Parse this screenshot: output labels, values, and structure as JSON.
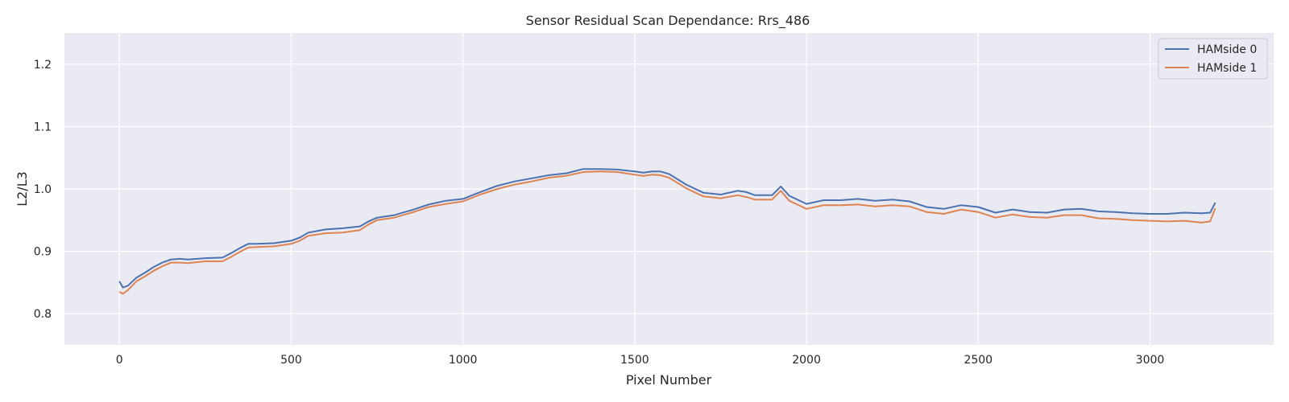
{
  "chart_data": {
    "type": "line",
    "title": "Sensor Residual Scan Dependance: Rrs_486",
    "xlabel": "Pixel Number",
    "ylabel": "L2/L3",
    "xlim": [
      -160,
      3360
    ],
    "ylim": [
      0.75,
      1.25
    ],
    "xticks": [
      0,
      500,
      1000,
      1500,
      2000,
      2500,
      3000
    ],
    "yticks": [
      0.8,
      0.9,
      1.0,
      1.1,
      1.2
    ],
    "xtick_labels": [
      "0",
      "500",
      "1000",
      "1500",
      "2000",
      "2500",
      "3000"
    ],
    "ytick_labels": [
      "0.8",
      "0.9",
      "1.0",
      "1.1",
      "1.2"
    ],
    "grid": true,
    "legend_position": "top-right",
    "series": [
      {
        "name": "HAMside 0",
        "color": "#4c72b0",
        "x": [
          0,
          10,
          25,
          50,
          75,
          100,
          125,
          150,
          175,
          200,
          250,
          300,
          325,
          350,
          375,
          400,
          450,
          500,
          525,
          550,
          600,
          650,
          700,
          725,
          750,
          800,
          850,
          900,
          950,
          1000,
          1050,
          1100,
          1150,
          1200,
          1250,
          1300,
          1350,
          1400,
          1450,
          1500,
          1525,
          1550,
          1575,
          1600,
          1650,
          1700,
          1750,
          1800,
          1825,
          1850,
          1900,
          1925,
          1950,
          2000,
          2050,
          2100,
          2150,
          2200,
          2250,
          2300,
          2350,
          2400,
          2450,
          2500,
          2550,
          2600,
          2650,
          2700,
          2750,
          2800,
          2850,
          2900,
          2950,
          3000,
          3050,
          3100,
          3150,
          3175,
          3190
        ],
        "y": [
          0.852,
          0.842,
          0.845,
          0.858,
          0.866,
          0.875,
          0.882,
          0.887,
          0.888,
          0.887,
          0.889,
          0.89,
          0.897,
          0.905,
          0.912,
          0.912,
          0.913,
          0.917,
          0.922,
          0.93,
          0.935,
          0.937,
          0.94,
          0.948,
          0.954,
          0.958,
          0.966,
          0.975,
          0.981,
          0.984,
          0.995,
          1.005,
          1.012,
          1.017,
          1.022,
          1.025,
          1.032,
          1.032,
          1.031,
          1.028,
          1.026,
          1.028,
          1.028,
          1.024,
          1.007,
          0.994,
          0.991,
          0.997,
          0.995,
          0.99,
          0.99,
          1.004,
          0.989,
          0.976,
          0.982,
          0.982,
          0.984,
          0.981,
          0.983,
          0.98,
          0.971,
          0.968,
          0.974,
          0.971,
          0.962,
          0.967,
          0.963,
          0.962,
          0.967,
          0.968,
          0.964,
          0.963,
          0.961,
          0.96,
          0.96,
          0.962,
          0.961,
          0.962,
          0.978
        ]
      },
      {
        "name": "HAMside 1",
        "color": "#dd8452",
        "x": [
          0,
          10,
          25,
          50,
          75,
          100,
          125,
          150,
          175,
          200,
          250,
          300,
          325,
          350,
          375,
          400,
          450,
          500,
          525,
          550,
          600,
          650,
          700,
          725,
          750,
          800,
          850,
          900,
          950,
          1000,
          1050,
          1100,
          1150,
          1200,
          1250,
          1300,
          1350,
          1400,
          1450,
          1500,
          1525,
          1550,
          1575,
          1600,
          1650,
          1700,
          1750,
          1800,
          1825,
          1850,
          1900,
          1925,
          1950,
          2000,
          2050,
          2100,
          2150,
          2200,
          2250,
          2300,
          2350,
          2400,
          2450,
          2500,
          2550,
          2600,
          2650,
          2700,
          2750,
          2800,
          2850,
          2900,
          2950,
          3000,
          3050,
          3100,
          3150,
          3175,
          3190
        ],
        "y": [
          0.835,
          0.832,
          0.838,
          0.852,
          0.86,
          0.869,
          0.876,
          0.882,
          0.882,
          0.881,
          0.884,
          0.884,
          0.891,
          0.899,
          0.906,
          0.907,
          0.908,
          0.912,
          0.917,
          0.925,
          0.929,
          0.93,
          0.934,
          0.943,
          0.95,
          0.954,
          0.962,
          0.971,
          0.976,
          0.98,
          0.991,
          1.0,
          1.007,
          1.012,
          1.018,
          1.021,
          1.027,
          1.028,
          1.027,
          1.023,
          1.021,
          1.023,
          1.022,
          1.018,
          1.001,
          0.988,
          0.985,
          0.99,
          0.987,
          0.983,
          0.983,
          0.997,
          0.981,
          0.968,
          0.974,
          0.974,
          0.975,
          0.972,
          0.974,
          0.972,
          0.963,
          0.96,
          0.967,
          0.963,
          0.954,
          0.959,
          0.955,
          0.954,
          0.958,
          0.958,
          0.953,
          0.952,
          0.95,
          0.949,
          0.948,
          0.949,
          0.946,
          0.948,
          0.969
        ]
      }
    ]
  }
}
